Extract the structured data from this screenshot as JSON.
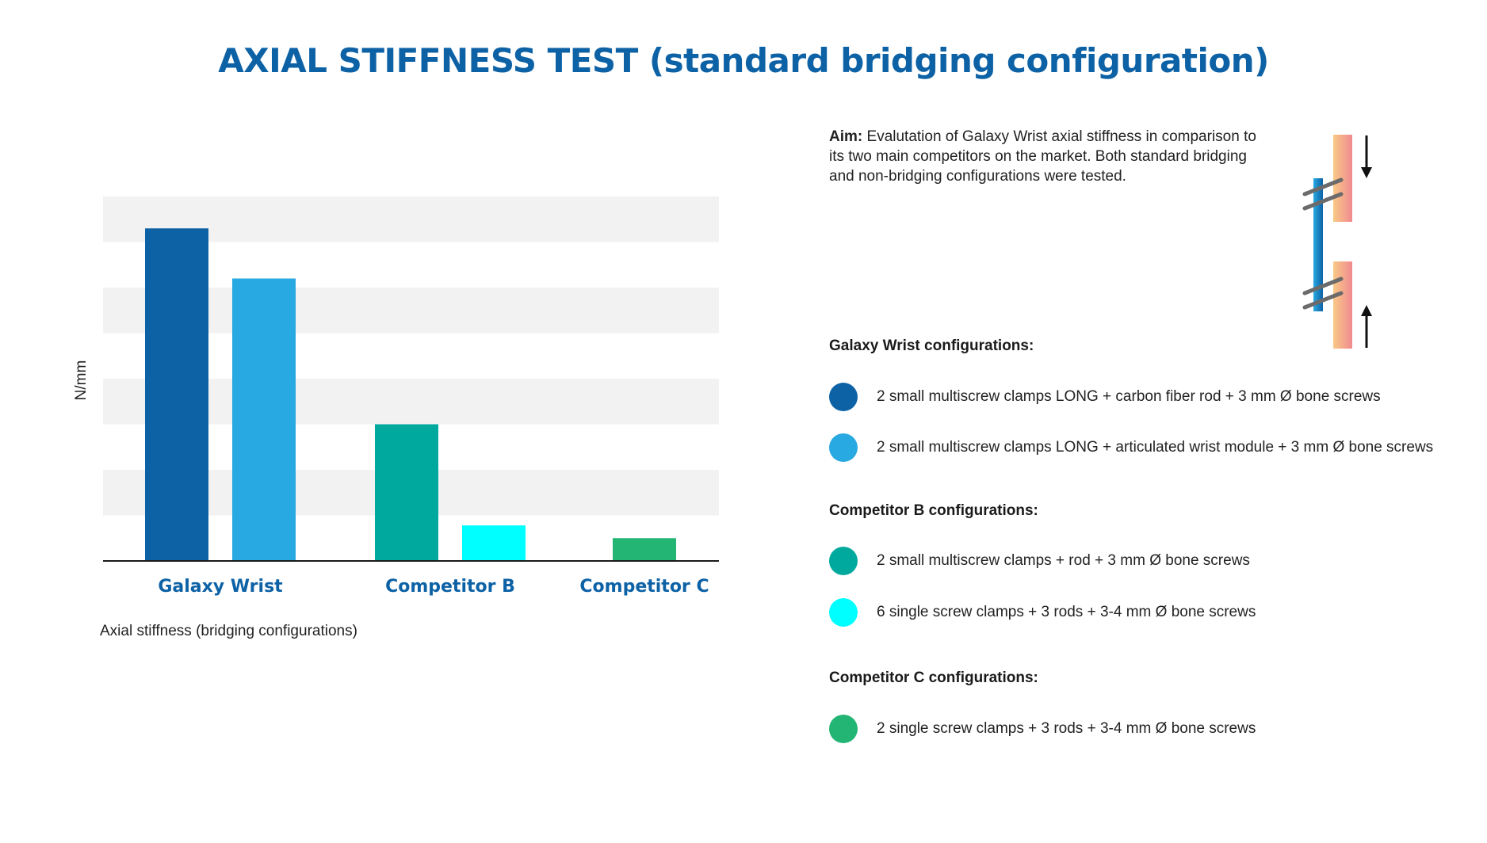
{
  "title": "AXIAL STIFFNESS TEST (standard bridging configuration)",
  "caption": "Axial stiffness (bridging configurations)",
  "aim": {
    "label": "Aim:",
    "text": "Evalutation of Galaxy Wrist axial stiffness in comparison to its two main competitors on the market. Both standard bridging and non-bridging configurations were tested."
  },
  "colors": {
    "title": "#0d62a6",
    "category_label": "#0d62a6",
    "grid_band": "#f2f2f2",
    "axis": "#1a1a1a"
  },
  "chart_data": {
    "type": "bar",
    "title": "",
    "xlabel": "",
    "ylabel": "N/mm",
    "ylim": [
      0,
      8
    ],
    "grid_bands": true,
    "categories": [
      "Galaxy Wrist",
      "Competitor B",
      "Competitor C"
    ],
    "bars": [
      {
        "category": 0,
        "value": 7.3,
        "color": "#0d62a6",
        "series": "2 small multiscrew clamps LONG + carbon fiber rod + 3 mm Ø bone screws"
      },
      {
        "category": 0,
        "value": 6.2,
        "color": "#29a9e1",
        "series": "2 small multiscrew clamps LONG + articulated wrist module + 3 mm Ø bone screws"
      },
      {
        "category": 1,
        "value": 3.0,
        "color": "#00a99d",
        "series": "2 small multiscrew clamps + rod + 3 mm Ø bone screws"
      },
      {
        "category": 1,
        "value": 0.78,
        "color": "#00ffff",
        "series": "6 single screw clamps + 3 rods + 3-4 mm Ø bone screws"
      },
      {
        "category": 2,
        "value": 0.5,
        "color": "#22b573",
        "series": "2 single screw clamps + 3 rods + 3-4 mm Ø bone screws"
      }
    ]
  },
  "legend": {
    "groups": [
      {
        "title": "Galaxy Wrist configurations:",
        "items": [
          {
            "label": "2 small multiscrew clamps LONG + carbon fiber rod + 3 mm Ø bone screws",
            "color": "#0d62a6"
          },
          {
            "label": "2 small multiscrew clamps LONG + articulated wrist module + 3 mm Ø bone screws",
            "color": "#29a9e1"
          }
        ]
      },
      {
        "title": "Competitor B configurations:",
        "items": [
          {
            "label": "2 small multiscrew clamps + rod + 3 mm Ø bone screws",
            "color": "#00a99d"
          },
          {
            "label": "6 single screw clamps + 3 rods + 3-4 mm Ø bone screws",
            "color": "#00ffff"
          }
        ]
      },
      {
        "title": "Competitor C configurations:",
        "items": [
          {
            "label": "2 single screw clamps + 3 rods + 3-4 mm Ø bone screws",
            "color": "#22b573"
          }
        ]
      }
    ]
  },
  "diagram": {
    "icon": "bridging-fixator-diagram-icon"
  }
}
